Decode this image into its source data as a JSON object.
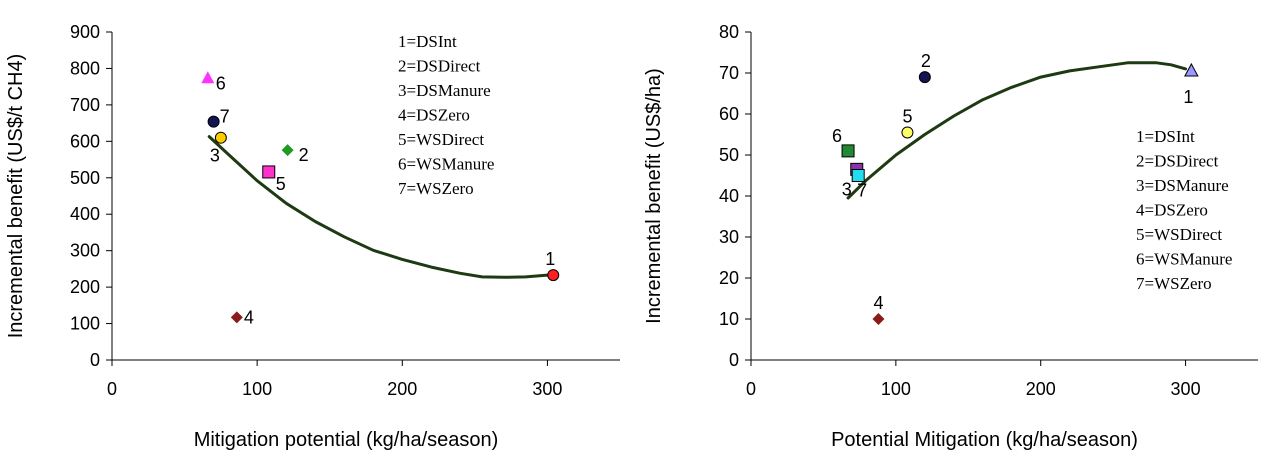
{
  "chart_data": [
    {
      "type": "scatter",
      "title": "",
      "xlabel": "Mitigation potential (kg/ha/season)",
      "ylabel": "Incremental benefit (US$/t CH4)",
      "xlim": [
        0,
        350
      ],
      "ylim": [
        0,
        900
      ],
      "x_ticks": [
        "0",
        "100",
        "200",
        "300"
      ],
      "y_ticks": [
        "0",
        "100",
        "200",
        "300",
        "400",
        "500",
        "600",
        "700",
        "800",
        "900"
      ],
      "grid": false,
      "legend_position": "top-right",
      "legend_entries": [
        "1=DSInt",
        "2=DSDirect",
        "3=DSManure",
        "4=DSZero",
        "5=WSDirect",
        "6=WSManure",
        "7=WSZero"
      ],
      "points": [
        {
          "label": "1",
          "x": 304,
          "y": 233,
          "marker": "circle",
          "color": "#ff2020"
        },
        {
          "label": "2",
          "x": 121,
          "y": 576,
          "marker": "diamond",
          "color": "#229922"
        },
        {
          "label": "3",
          "x": 75,
          "y": 610,
          "marker": "circle",
          "color": "#ffcc00"
        },
        {
          "label": "4",
          "x": 86,
          "y": 117,
          "marker": "diamond",
          "color": "#8b1a1a"
        },
        {
          "label": "5",
          "x": 108,
          "y": 516,
          "marker": "square",
          "color": "#ff33cc"
        },
        {
          "label": "6",
          "x": 66,
          "y": 773,
          "marker": "triangle",
          "color": "#ff33ff"
        },
        {
          "label": "7",
          "x": 70,
          "y": 654,
          "marker": "circle",
          "color": "#141452"
        }
      ],
      "curve": {
        "color": "#1e3a12",
        "x": [
          67,
          80,
          100,
          120,
          140,
          160,
          180,
          200,
          220,
          240,
          255,
          270,
          285,
          300
        ],
        "y": [
          613,
          565,
          492,
          430,
          380,
          338,
          301,
          276,
          255,
          238,
          228,
          227,
          228,
          233
        ]
      }
    },
    {
      "type": "scatter",
      "title": "",
      "xlabel": "Potential Mitigation (kg/ha/season)",
      "ylabel": "Incremental benefit (US$/ha)",
      "xlim": [
        0,
        350
      ],
      "ylim": [
        0,
        80
      ],
      "x_ticks": [
        "0",
        "100",
        "200",
        "300"
      ],
      "y_ticks": [
        "0",
        "10",
        "20",
        "30",
        "40",
        "50",
        "60",
        "70",
        "80"
      ],
      "grid": false,
      "legend_position": "right",
      "legend_entries": [
        "1=DSInt",
        "2=DSDirect",
        "3=DSManure",
        "4=DSZero",
        "5=WSDirect",
        "6=WSManure",
        "7=WSZero"
      ],
      "points": [
        {
          "label": "1",
          "x": 304,
          "y": 70.5,
          "marker": "triangle",
          "color": "#9999ff"
        },
        {
          "label": "2",
          "x": 120,
          "y": 69,
          "marker": "circle",
          "color": "#141452"
        },
        {
          "label": "3",
          "x": 73,
          "y": 46.5,
          "marker": "square",
          "color": "#8833aa"
        },
        {
          "label": "4",
          "x": 88,
          "y": 10,
          "marker": "diamond",
          "color": "#8b1a1a"
        },
        {
          "label": "5",
          "x": 108,
          "y": 55.5,
          "marker": "circle",
          "color": "#ffff66"
        },
        {
          "label": "6",
          "x": 67,
          "y": 51,
          "marker": "square",
          "color": "#228833"
        },
        {
          "label": "7",
          "x": 74,
          "y": 45,
          "marker": "square",
          "color": "#22ddee"
        }
      ],
      "curve": {
        "color": "#1e3a12",
        "x": [
          67,
          80,
          100,
          120,
          140,
          160,
          180,
          200,
          220,
          240,
          260,
          280,
          290,
          300
        ],
        "y": [
          39.5,
          44,
          50,
          55,
          59.5,
          63.5,
          66.5,
          69,
          70.5,
          71.5,
          72.5,
          72.5,
          72,
          71
        ]
      }
    }
  ]
}
